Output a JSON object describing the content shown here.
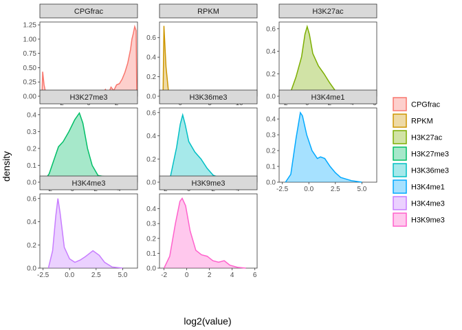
{
  "chart_data": {
    "type": "area",
    "xlabel": "log2(value)",
    "ylabel": "density",
    "facet_grid": "3x3",
    "legend_position": "right",
    "panels": [
      {
        "name": "CPGfrac",
        "color": "#F8766D",
        "xlim": [
          -3.5,
          3.5
        ],
        "ylim": [
          0,
          1.3
        ],
        "xticks": [
          -2,
          0,
          2
        ],
        "yticks": [
          0.0,
          0.25,
          0.5,
          0.75,
          1.0,
          1.25
        ],
        "ytick_labels": [
          "0.00",
          "0.25",
          "0.50",
          "0.75",
          "1.00",
          "1.25"
        ],
        "points": [
          [
            -3.35,
            0.0
          ],
          [
            -3.3,
            0.43
          ],
          [
            -3.2,
            0.2
          ],
          [
            -3.05,
            0.02
          ],
          [
            -2.5,
            0.0
          ],
          [
            -1.5,
            0.0
          ],
          [
            -0.8,
            0.01
          ],
          [
            -0.5,
            0.04
          ],
          [
            -0.2,
            0.01
          ],
          [
            0.3,
            0.01
          ],
          [
            0.6,
            0.06
          ],
          [
            0.8,
            0.02
          ],
          [
            1.0,
            0.05
          ],
          [
            1.2,
            0.12
          ],
          [
            1.4,
            0.04
          ],
          [
            1.6,
            0.16
          ],
          [
            1.8,
            0.1
          ],
          [
            2.0,
            0.2
          ],
          [
            2.2,
            0.22
          ],
          [
            2.4,
            0.3
          ],
          [
            2.6,
            0.42
          ],
          [
            2.8,
            0.58
          ],
          [
            3.0,
            0.82
          ],
          [
            3.1,
            1.0
          ],
          [
            3.2,
            1.1
          ],
          [
            3.3,
            1.22
          ],
          [
            3.4,
            1.15
          ],
          [
            3.45,
            0.0
          ]
        ]
      },
      {
        "name": "RPKM",
        "color": "#CD9600",
        "xlim": [
          -3.5,
          13
        ],
        "ylim": [
          0,
          0.76
        ],
        "xticks": [
          0,
          5,
          10
        ],
        "yticks": [
          0.0,
          0.2,
          0.4,
          0.6
        ],
        "ytick_labels": [
          "0.0",
          "0.2",
          "0.4",
          "0.6"
        ],
        "points": [
          [
            -2.9,
            0.0
          ],
          [
            -2.75,
            0.72
          ],
          [
            -2.4,
            0.3
          ],
          [
            -2.0,
            0.06
          ],
          [
            -1.0,
            0.02
          ],
          [
            0.0,
            0.06
          ],
          [
            0.5,
            0.05
          ],
          [
            1.0,
            0.03
          ],
          [
            2.0,
            0.035
          ],
          [
            3.0,
            0.04
          ],
          [
            4.0,
            0.04
          ],
          [
            5.0,
            0.035
          ],
          [
            6.0,
            0.03
          ],
          [
            7.0,
            0.025
          ],
          [
            8.0,
            0.02
          ],
          [
            9.0,
            0.015
          ],
          [
            10.0,
            0.01
          ],
          [
            11.0,
            0.003
          ],
          [
            12.0,
            0.0
          ]
        ]
      },
      {
        "name": "H3K27ac",
        "color": "#7CAE00",
        "xlim": [
          -2.5,
          6.2
        ],
        "ylim": [
          0,
          0.66
        ],
        "xticks": [
          -2,
          0,
          2,
          4,
          6
        ],
        "yticks": [
          0.0,
          0.2,
          0.4,
          0.6
        ],
        "ytick_labels": [
          "0.0",
          "0.2",
          "0.4",
          "0.6"
        ],
        "points": [
          [
            -2.0,
            0.0
          ],
          [
            -1.5,
            0.03
          ],
          [
            -1.0,
            0.17
          ],
          [
            -0.5,
            0.35
          ],
          [
            -0.2,
            0.55
          ],
          [
            0.0,
            0.62
          ],
          [
            0.2,
            0.55
          ],
          [
            0.5,
            0.38
          ],
          [
            1.0,
            0.27
          ],
          [
            1.5,
            0.2
          ],
          [
            2.0,
            0.12
          ],
          [
            2.5,
            0.05
          ],
          [
            3.0,
            0.02
          ],
          [
            4.0,
            0.005
          ],
          [
            5.0,
            0.0
          ]
        ]
      },
      {
        "name": "H3K27me3",
        "color": "#00BE67",
        "xlim": [
          -2.8,
          5.6
        ],
        "ylim": [
          0,
          0.44
        ],
        "xticks": [
          -2,
          0,
          2,
          4
        ],
        "yticks": [
          0.0,
          0.1,
          0.2,
          0.3,
          0.4
        ],
        "ytick_labels": [
          "0.0",
          "0.1",
          "0.2",
          "0.3",
          "0.4"
        ],
        "points": [
          [
            -2.5,
            0.0
          ],
          [
            -2.0,
            0.05
          ],
          [
            -1.5,
            0.15
          ],
          [
            -1.2,
            0.21
          ],
          [
            -0.8,
            0.24
          ],
          [
            -0.3,
            0.3
          ],
          [
            0.2,
            0.37
          ],
          [
            0.6,
            0.41
          ],
          [
            0.9,
            0.35
          ],
          [
            1.3,
            0.2
          ],
          [
            1.7,
            0.1
          ],
          [
            2.2,
            0.04
          ],
          [
            2.6,
            0.035
          ],
          [
            3.2,
            0.03
          ],
          [
            4.0,
            0.02
          ],
          [
            4.6,
            0.01
          ],
          [
            5.2,
            0.0
          ]
        ]
      },
      {
        "name": "H3K36me3",
        "color": "#00BFC4",
        "xlim": [
          -2.4,
          5.6
        ],
        "ylim": [
          0,
          0.64
        ],
        "xticks": [
          -2,
          0,
          2,
          4
        ],
        "yticks": [
          0.0,
          0.2,
          0.4,
          0.6
        ],
        "ytick_labels": [
          "0.0",
          "0.2",
          "0.4",
          "0.6"
        ],
        "points": [
          [
            -2.0,
            0.0
          ],
          [
            -1.5,
            0.05
          ],
          [
            -1.0,
            0.3
          ],
          [
            -0.7,
            0.5
          ],
          [
            -0.5,
            0.58
          ],
          [
            -0.3,
            0.5
          ],
          [
            0.0,
            0.35
          ],
          [
            0.5,
            0.26
          ],
          [
            1.0,
            0.2
          ],
          [
            1.5,
            0.12
          ],
          [
            2.0,
            0.06
          ],
          [
            2.5,
            0.04
          ],
          [
            3.0,
            0.03
          ],
          [
            3.5,
            0.02
          ],
          [
            4.0,
            0.005
          ],
          [
            5.0,
            0.0
          ]
        ]
      },
      {
        "name": "H3K4me1",
        "color": "#00A9FF",
        "xlim": [
          -2.8,
          6.4
        ],
        "ylim": [
          0,
          0.47
        ],
        "xticks": [
          -2.5,
          0.0,
          2.5,
          5.0
        ],
        "yticks": [
          0.0,
          0.1,
          0.2,
          0.3,
          0.4
        ],
        "ytick_labels": [
          "0.0",
          "0.1",
          "0.2",
          "0.3",
          "0.4"
        ],
        "points": [
          [
            -2.2,
            0.0
          ],
          [
            -1.7,
            0.05
          ],
          [
            -1.2,
            0.28
          ],
          [
            -0.8,
            0.44
          ],
          [
            -0.6,
            0.42
          ],
          [
            -0.2,
            0.3
          ],
          [
            0.3,
            0.2
          ],
          [
            0.8,
            0.15
          ],
          [
            1.1,
            0.16
          ],
          [
            1.5,
            0.15
          ],
          [
            2.0,
            0.1
          ],
          [
            2.5,
            0.06
          ],
          [
            3.0,
            0.03
          ],
          [
            4.0,
            0.01
          ],
          [
            5.0,
            0.0
          ]
        ]
      },
      {
        "name": "H3K4me3",
        "color": "#C77CFF",
        "xlim": [
          -2.8,
          6.4
        ],
        "ylim": [
          0,
          0.64
        ],
        "xticks": [
          -2.5,
          0.0,
          2.5,
          5.0
        ],
        "yticks": [
          0.0,
          0.2,
          0.4,
          0.6
        ],
        "ytick_labels": [
          "0.0",
          "0.2",
          "0.4",
          "0.6"
        ],
        "points": [
          [
            -2.0,
            0.0
          ],
          [
            -1.6,
            0.15
          ],
          [
            -1.3,
            0.45
          ],
          [
            -1.1,
            0.6
          ],
          [
            -0.9,
            0.48
          ],
          [
            -0.5,
            0.18
          ],
          [
            0.0,
            0.08
          ],
          [
            0.5,
            0.05
          ],
          [
            1.0,
            0.07
          ],
          [
            1.5,
            0.1
          ],
          [
            2.2,
            0.15
          ],
          [
            2.8,
            0.11
          ],
          [
            3.3,
            0.05
          ],
          [
            4.0,
            0.01
          ],
          [
            5.0,
            0.0
          ]
        ]
      },
      {
        "name": "H3K9me3",
        "color": "#FF61CC",
        "xlim": [
          -2.4,
          6.2
        ],
        "ylim": [
          0,
          0.5
        ],
        "xticks": [
          -2,
          0,
          2,
          4,
          6
        ],
        "yticks": [
          0.0,
          0.1,
          0.2,
          0.3,
          0.4
        ],
        "ytick_labels": [
          "0.0",
          "0.1",
          "0.2",
          "0.3",
          "0.4"
        ],
        "points": [
          [
            -2.0,
            0.0
          ],
          [
            -1.5,
            0.08
          ],
          [
            -1.0,
            0.3
          ],
          [
            -0.6,
            0.45
          ],
          [
            -0.4,
            0.47
          ],
          [
            -0.1,
            0.42
          ],
          [
            0.3,
            0.25
          ],
          [
            0.8,
            0.12
          ],
          [
            1.3,
            0.09
          ],
          [
            1.8,
            0.08
          ],
          [
            2.3,
            0.05
          ],
          [
            2.8,
            0.04
          ],
          [
            3.3,
            0.05
          ],
          [
            3.8,
            0.02
          ],
          [
            4.5,
            0.005
          ],
          [
            5.2,
            0.0
          ]
        ]
      }
    ]
  }
}
